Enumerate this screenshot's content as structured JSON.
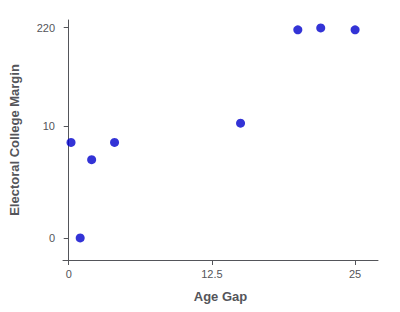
{
  "chart_data": {
    "type": "scatter",
    "x": [
      0.2,
      1.0,
      2.0,
      4.0,
      15.0,
      20.0,
      22.0,
      25.0
    ],
    "values": [
      6.0,
      0.3,
      3.5,
      6.0,
      11.0,
      206.0,
      218.0,
      206.0
    ],
    "color": "#0000cc",
    "xlabel": "Age Gap",
    "ylabel": "Electoral College Margin",
    "xlim": [
      -0.5,
      27
    ],
    "ylim": [
      0.15,
      280
    ],
    "xticks": [
      0,
      12.5,
      25
    ],
    "yticks": [
      {
        "value": 0.3,
        "label": "0"
      },
      10,
      220
    ],
    "log": "y",
    "grid": false
  }
}
